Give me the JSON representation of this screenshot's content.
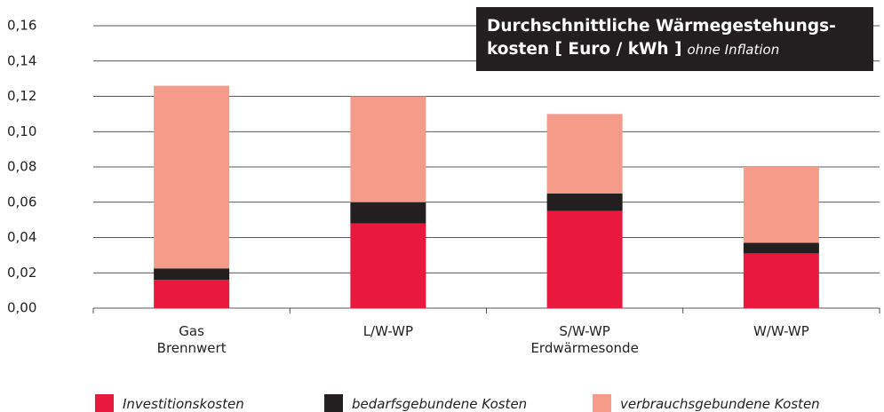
{
  "chart_data": {
    "type": "stacked_bar",
    "title": "Durchschnittliche Wärmegestehungs-\nkosten [ Euro / kWh ]",
    "subtitle": "ohne Inflation",
    "categories": [
      "Gas\nBrennwert",
      "L/W-WP",
      "S/W-WP\nErdwärmesonde",
      "W/W-WP"
    ],
    "series": [
      {
        "name": "Investitionskosten",
        "color": "#e8193c",
        "values": [
          0.016,
          0.048,
          0.055,
          0.031
        ]
      },
      {
        "name": "bedarfsgebundene Kosten",
        "color": "#231f20",
        "values": [
          0.0065,
          0.012,
          0.01,
          0.006
        ]
      },
      {
        "name": "verbrauchsgebundene Kosten",
        "color": "#f49b89",
        "values": [
          0.1035,
          0.06,
          0.045,
          0.043
        ]
      }
    ],
    "ylim": [
      0,
      0.16
    ],
    "yticks": [
      {
        "value": 0,
        "label": "0,00"
      },
      {
        "value": 0.02,
        "label": "0,02"
      },
      {
        "value": 0.04,
        "label": "0,04"
      },
      {
        "value": 0.06,
        "label": "0,06"
      },
      {
        "value": 0.08,
        "label": "0,08"
      },
      {
        "value": 0.1,
        "label": "0,10"
      },
      {
        "value": 0.12,
        "label": "0,12"
      },
      {
        "value": 0.14,
        "label": "0,14"
      },
      {
        "value": 0.16,
        "label": "0,16"
      }
    ],
    "grid": true
  }
}
